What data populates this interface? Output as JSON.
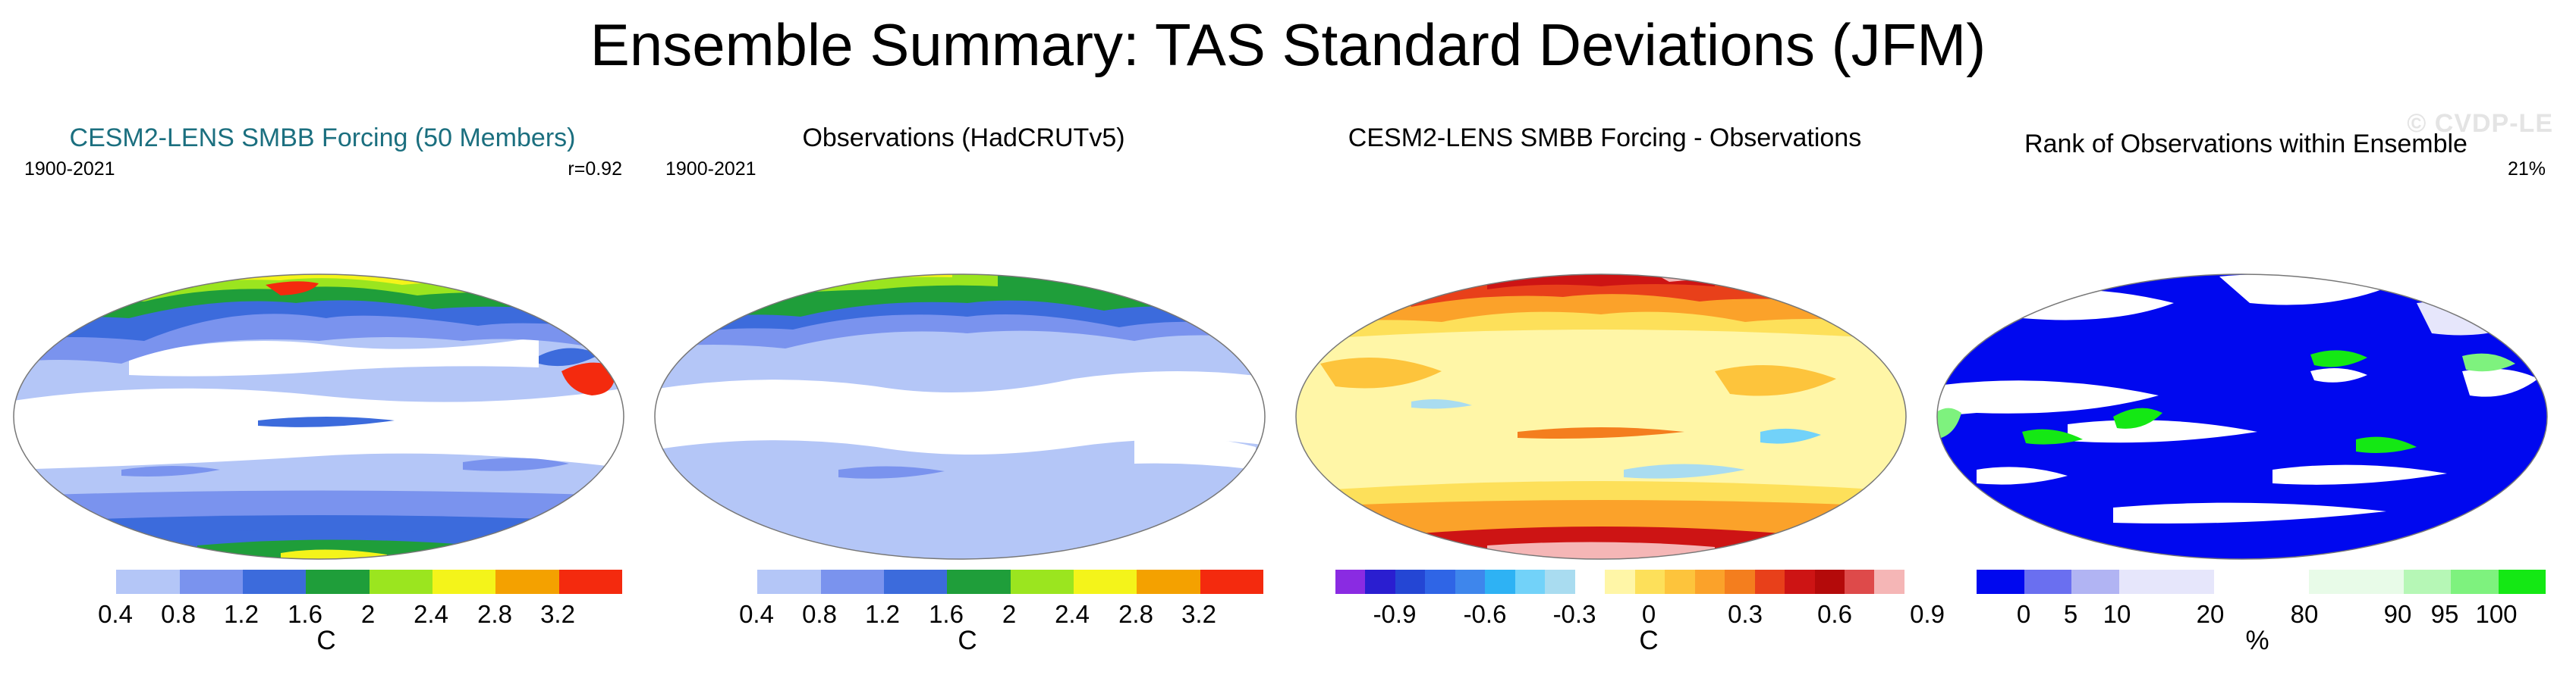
{
  "title": "Ensemble Summary: TAS Standard Deviations (JFM)",
  "watermark": "© CVDP-LE",
  "colors": {
    "teal_title": "#1b6f7f",
    "std_scale": [
      "#ffffff",
      "#b4c6f7",
      "#7a93ee",
      "#3c6bdc",
      "#1f9e3a",
      "#9be51f",
      "#f4f41a",
      "#f4a100",
      "#f42a0e"
    ],
    "diff_scale": [
      "#8a2be2",
      "#2a1ed0",
      "#2446d4",
      "#2f65e6",
      "#3e86ec",
      "#2eb2f4",
      "#72d2f9",
      "#a9dcf0",
      "#ffffff",
      "#fff6a7",
      "#fde05a",
      "#fdc43c",
      "#fba22a",
      "#f47e1e",
      "#e8401a",
      "#cd1414",
      "#b40a0a",
      "#de4a4a",
      "#f5b6b6"
    ],
    "rank_scale": [
      "#0008ef",
      "#6a6ff0",
      "#b1b4f3",
      "#e6e6fb",
      "#ffffff",
      "#e8fbe8",
      "#b6f7b6",
      "#7ef27e",
      "#14e814"
    ]
  },
  "chart_data": [
    {
      "type": "heatmap",
      "title": "CESM2-LENS SMBB Forcing (50 Members)",
      "period": "1900-2021",
      "stat": "r=0.92",
      "colorbar": {
        "ticks": [
          "0.4",
          "0.8",
          "1.2",
          "1.6",
          "2",
          "2.4",
          "2.8",
          "3.2"
        ],
        "unit": "C"
      }
    },
    {
      "type": "heatmap",
      "title": "Observations (HadCRUTv5)",
      "period": "1900-2021",
      "stat": "",
      "colorbar": {
        "ticks": [
          "0.4",
          "0.8",
          "1.2",
          "1.6",
          "2",
          "2.4",
          "2.8",
          "3.2"
        ],
        "unit": "C"
      }
    },
    {
      "type": "heatmap",
      "title": "CESM2-LENS SMBB Forcing - Observations",
      "period": "",
      "stat": "",
      "colorbar": {
        "ticks": [
          "-0.9",
          "-0.6",
          "-0.3",
          "0",
          "0.3",
          "0.6",
          "0.9"
        ],
        "unit": "C"
      }
    },
    {
      "type": "heatmap",
      "title": "Rank of Observations within Ensemble",
      "period": "",
      "stat": "21%",
      "colorbar": {
        "ticks": [
          "0",
          "5",
          "10",
          "20",
          "80",
          "90",
          "95",
          "100"
        ],
        "unit": "%"
      }
    }
  ]
}
